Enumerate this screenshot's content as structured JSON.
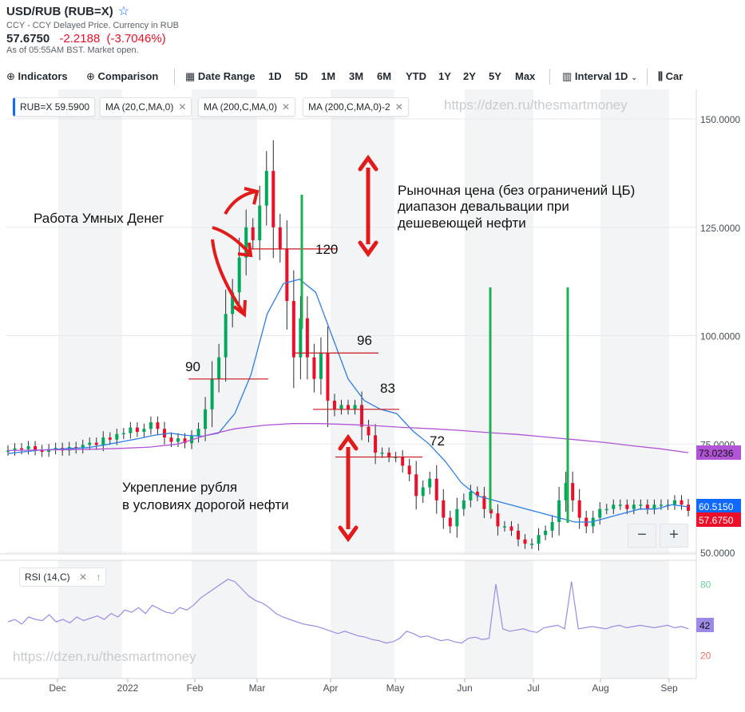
{
  "header": {
    "title": "USD/RUB (RUB=X)",
    "subtitle": "CCY - CCY Delayed Price. Currency in RUB",
    "price": "57.6750",
    "change": "-2.2188",
    "change_pct": "(-3.7046%)",
    "as_of": "As of 05:55AM BST. Market open."
  },
  "toolbar": {
    "indicators": "Indicators",
    "comparison": "Comparison",
    "date_range": "Date Range",
    "ranges": [
      "1D",
      "5D",
      "1M",
      "3M",
      "6M",
      "YTD",
      "1Y",
      "2Y",
      "5Y",
      "Max"
    ],
    "interval": "Interval",
    "interval_value": "1D",
    "chart_type": "Car"
  },
  "legend": {
    "symbol": "RUB=X",
    "symbol_value": "59.5900",
    "ma1": "MA (20,C,MA,0)",
    "ma2": "MA (200,C,MA,0)",
    "ma3": "MA (200,C,MA,0)-2"
  },
  "watermark": "https://dzen.ru/thesmartmoney",
  "colors": {
    "up": "#00a85a",
    "down": "#eb0f29",
    "ma20": "#2d7ee4",
    "ma200": "#b254d6",
    "rsi": "#9c8ae6",
    "annot_red": "#e31a1a",
    "annot_green": "#1fb04f",
    "level_line": "#c8161d"
  },
  "annotations": {
    "smart_money": "Работа Умных Денег",
    "market_price_1": "Рыночная цена (без ограничений ЦБ)",
    "market_price_2": "диапазон девальвации при",
    "market_price_3": "дешевеющей нефти",
    "strengthening_1": "Укрепление рубля",
    "strengthening_2": "в условиях дорогой нефти",
    "level_90": "90",
    "level_120": "120",
    "level_96": "96",
    "level_83": "83",
    "level_72": "72"
  },
  "price_tags": {
    "ma200": "73.0236",
    "ma20": "60.5150",
    "last": "57.6750"
  },
  "rsi": {
    "label": "RSI (14,C)",
    "value": "42",
    "ticks": [
      "80",
      "20"
    ]
  },
  "zoom": {
    "minus": "−",
    "plus": "+"
  },
  "chart_data": {
    "type": "candlestick",
    "y_ticks": [
      "150.0000",
      "125.0000",
      "100.0000",
      "75.0000",
      "50.0000"
    ],
    "ylim": [
      50,
      152
    ],
    "x_ticks": [
      "Dec",
      "2022",
      "Feb",
      "Mar",
      "Apr",
      "May",
      "Jun",
      "Jul",
      "Aug",
      "Sep"
    ],
    "series": [
      {
        "name": "RUB=X",
        "values": [
          73.5,
          74,
          73.8,
          74.5,
          73.6,
          73.2,
          73.8,
          74.1,
          73.5,
          74.3,
          74,
          74.8,
          75.3,
          74.8,
          76.5,
          76,
          77.3,
          77.5,
          78.8,
          77.8,
          78.5,
          80,
          78.5,
          76.5,
          75.5,
          76.3,
          75.2,
          76.8,
          78.5,
          83,
          90,
          95,
          105,
          110,
          118,
          125,
          122,
          130,
          138,
          125,
          120,
          108,
          95,
          104,
          95,
          90,
          96,
          85,
          83,
          84,
          83,
          84,
          79,
          77,
          73,
          73,
          72,
          72,
          70,
          68,
          63,
          65,
          67,
          62,
          58,
          56,
          60,
          62,
          64,
          63,
          60,
          59,
          56,
          56,
          55,
          53,
          52,
          52,
          54,
          55,
          57,
          62,
          66,
          62,
          58,
          56,
          58,
          60,
          60,
          61,
          61,
          60,
          61,
          61,
          60,
          61,
          61,
          61,
          62,
          61,
          59.59
        ]
      },
      {
        "name": "MA (20,C,MA,0)",
        "values": [
          72.8,
          73.2,
          73.6,
          73.8,
          74,
          74.2,
          74.8,
          75.5,
          76.2,
          77,
          77.5,
          77,
          76.8,
          77.5,
          82,
          91,
          105,
          112,
          113,
          110,
          100,
          90,
          85,
          83,
          82,
          78,
          75,
          71,
          66,
          63,
          62,
          61,
          60,
          59,
          58,
          57,
          57,
          58,
          59,
          60,
          60,
          61,
          60.5
        ]
      },
      {
        "name": "MA (200,C,MA,0)",
        "values": [
          73.5,
          73.6,
          73.7,
          73.8,
          74,
          74.3,
          75,
          77,
          78.5,
          79.3,
          79.7,
          79.7,
          79.5,
          79.2,
          78.8,
          78.5,
          78.1,
          77.6,
          77.2,
          76.6,
          76,
          75.4,
          74.6,
          73.9,
          73.0
        ]
      }
    ],
    "levels": [
      120,
      96,
      90,
      83,
      72
    ],
    "rsi_series": {
      "name": "RSI (14,C)",
      "ylim": [
        0,
        100
      ],
      "values": [
        48,
        50,
        46,
        52,
        50,
        49,
        54,
        48,
        50,
        47,
        52,
        49,
        51,
        53,
        50,
        55,
        52,
        58,
        56,
        60,
        55,
        62,
        59,
        56,
        55,
        60,
        58,
        62,
        68,
        72,
        76,
        80,
        84,
        82,
        76,
        70,
        66,
        64,
        60,
        55,
        52,
        50,
        48,
        46,
        45,
        44,
        42,
        40,
        38,
        40,
        38,
        36,
        35,
        33,
        32,
        30,
        31,
        34,
        40,
        38,
        35,
        36,
        34,
        32,
        33,
        31,
        30,
        34,
        35,
        33,
        34,
        80,
        42,
        40,
        41,
        42,
        40,
        39,
        43,
        44,
        45,
        42,
        82,
        42,
        43,
        44,
        43,
        42,
        44,
        45,
        43,
        44,
        45,
        44,
        43,
        44,
        45,
        43,
        44,
        42
      ]
    }
  }
}
